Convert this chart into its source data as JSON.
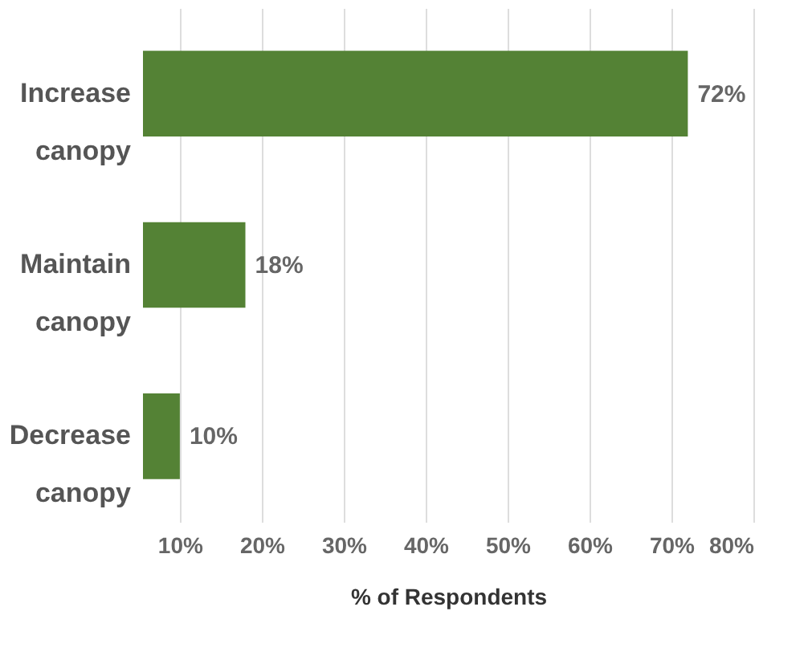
{
  "chart_data": {
    "type": "bar",
    "orientation": "horizontal",
    "xlabel": "% of Respondents",
    "categories": [
      "Increase canopy",
      "Maintain canopy",
      "Decrease canopy"
    ],
    "values": [
      72,
      18,
      10
    ],
    "color": "#548235",
    "value_labels": [
      "72%",
      "18%",
      "10%"
    ],
    "xlim": [
      5.5,
      80
    ],
    "xticks": [
      {
        "value": 10,
        "label": "10%"
      },
      {
        "value": 20,
        "label": "20%"
      },
      {
        "value": 30,
        "label": "30%"
      },
      {
        "value": 40,
        "label": "40%"
      },
      {
        "value": 50,
        "label": "50%"
      },
      {
        "value": 60,
        "label": "60%"
      },
      {
        "value": 70,
        "label": "70%"
      },
      {
        "value": 80,
        "label": "80%"
      }
    ],
    "grid": "x"
  }
}
